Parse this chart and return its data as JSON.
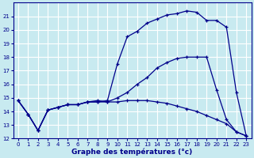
{
  "title": "Graphe des températures (°c)",
  "bg_color": "#c8eaf0",
  "line_color": "#00008b",
  "grid_color": "#ffffff",
  "xlim": [
    -0.5,
    23.5
  ],
  "ylim": [
    12,
    22
  ],
  "xticks": [
    0,
    1,
    2,
    3,
    4,
    5,
    6,
    7,
    8,
    9,
    10,
    11,
    12,
    13,
    14,
    15,
    16,
    17,
    18,
    19,
    20,
    21,
    22,
    23
  ],
  "yticks": [
    12,
    13,
    14,
    15,
    16,
    17,
    18,
    19,
    20,
    21
  ],
  "series1_x": [
    0,
    1,
    2,
    3,
    4,
    5,
    6,
    7,
    8,
    9,
    10,
    11,
    12,
    13,
    14,
    15,
    16,
    17,
    18,
    19,
    20,
    21,
    22,
    23
  ],
  "series1_y": [
    14.8,
    13.8,
    12.6,
    14.1,
    14.3,
    14.5,
    14.5,
    14.7,
    14.8,
    14.7,
    14.7,
    14.8,
    14.8,
    14.8,
    14.7,
    14.6,
    14.4,
    14.2,
    14.0,
    13.7,
    13.4,
    13.1,
    12.5,
    12.2
  ],
  "series2_x": [
    0,
    1,
    2,
    3,
    4,
    5,
    6,
    7,
    8,
    9,
    10,
    11,
    12,
    13,
    14,
    15,
    16,
    17,
    18,
    19,
    20,
    21,
    22,
    23
  ],
  "series2_y": [
    14.8,
    13.8,
    12.6,
    14.1,
    14.3,
    14.5,
    14.5,
    14.7,
    14.7,
    14.7,
    15.0,
    15.4,
    16.0,
    16.5,
    17.2,
    17.6,
    17.9,
    18.0,
    18.0,
    18.0,
    15.6,
    13.4,
    12.5,
    12.2
  ],
  "series3_x": [
    0,
    1,
    2,
    3,
    4,
    5,
    6,
    7,
    8,
    9,
    10,
    11,
    12,
    13,
    14,
    15,
    16,
    17,
    18,
    19,
    20,
    21,
    22,
    23
  ],
  "series3_y": [
    14.8,
    13.8,
    12.6,
    14.1,
    14.3,
    14.5,
    14.5,
    14.7,
    14.7,
    14.8,
    17.5,
    19.5,
    19.9,
    20.5,
    20.8,
    21.1,
    21.2,
    21.4,
    21.3,
    20.7,
    20.7,
    20.2,
    15.4,
    12.2
  ]
}
